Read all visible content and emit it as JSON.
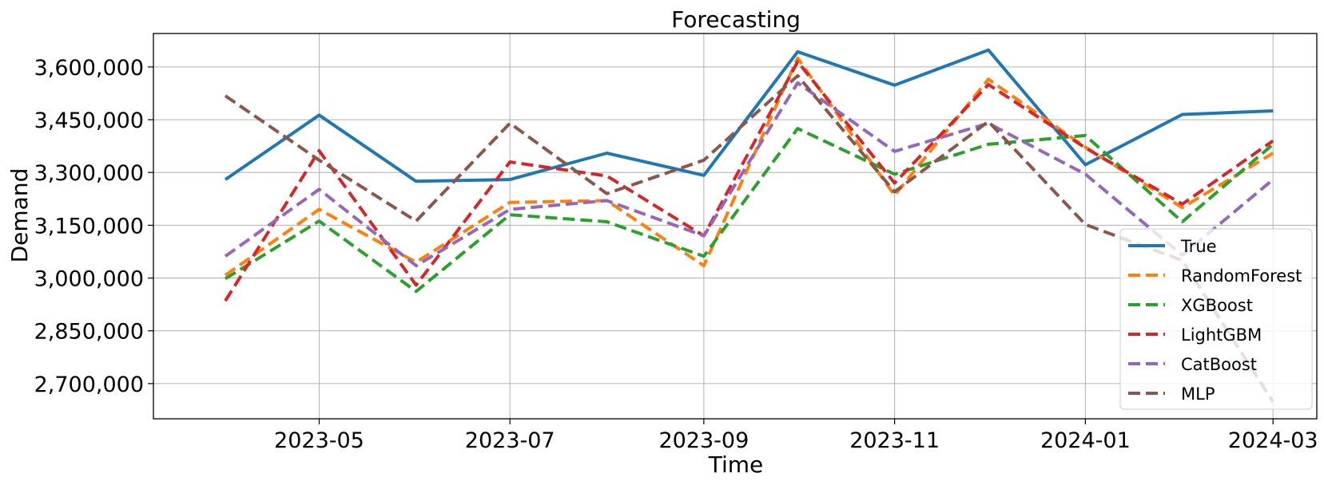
{
  "chart_data": {
    "type": "line",
    "title": "Forecasting",
    "xlabel": "Time",
    "ylabel": "Demand",
    "x": [
      "2023-04",
      "2023-05",
      "2023-06",
      "2023-07",
      "2023-08",
      "2023-09",
      "2023-10",
      "2023-11",
      "2023-12",
      "2024-01",
      "2024-02",
      "2024-03"
    ],
    "x_ticks": [
      "2023-05",
      "2023-07",
      "2023-09",
      "2023-11",
      "2024-01",
      "2024-03"
    ],
    "y_ticks": [
      2700000,
      2850000,
      3000000,
      3150000,
      3300000,
      3450000,
      3600000
    ],
    "y_tick_labels": [
      "2,700,000",
      "2,850,000",
      "3,000,000",
      "3,150,000",
      "3,300,000",
      "3,450,000",
      "3,600,000"
    ],
    "ylim": [
      2600000,
      3695000
    ],
    "xlim": [
      "2023-03-09",
      "2024-03-15"
    ],
    "grid": true,
    "legend_position": "lower-right",
    "series": [
      {
        "name": "True",
        "style": "solid",
        "color": "#1f77b4",
        "values": [
          3280000,
          3463000,
          3275000,
          3280000,
          3355000,
          3292000,
          3643000,
          3548000,
          3648000,
          3322000,
          3465000,
          3475000
        ]
      },
      {
        "name": "RandomForest",
        "style": "dashed",
        "color": "#ff7f0e",
        "values": [
          3008000,
          3195000,
          3045000,
          3215000,
          3220000,
          3035000,
          3625000,
          3235000,
          3565000,
          3372000,
          3200000,
          3355000
        ]
      },
      {
        "name": "XGBoost",
        "style": "dashed",
        "color": "#2ca02c",
        "values": [
          2998000,
          3162000,
          2962000,
          3180000,
          3160000,
          3062000,
          3425000,
          3295000,
          3380000,
          3405000,
          3160000,
          3380000
        ]
      },
      {
        "name": "LightGBM",
        "style": "dashed",
        "color": "#d62728",
        "values": [
          2935000,
          3362000,
          2980000,
          3330000,
          3290000,
          3120000,
          3615000,
          3270000,
          3550000,
          3370000,
          3210000,
          3390000
        ]
      },
      {
        "name": "CatBoost",
        "style": "dashed",
        "color": "#9467bd",
        "values": [
          3062000,
          3252000,
          3035000,
          3195000,
          3220000,
          3120000,
          3555000,
          3360000,
          3440000,
          3295000,
          3065000,
          3280000
        ]
      },
      {
        "name": "MLP",
        "style": "dashed",
        "color": "#8c564b",
        "values": [
          3518000,
          3335000,
          3162000,
          3440000,
          3240000,
          3335000,
          3575000,
          3245000,
          3445000,
          3152000,
          3050000,
          2648000
        ]
      }
    ]
  }
}
